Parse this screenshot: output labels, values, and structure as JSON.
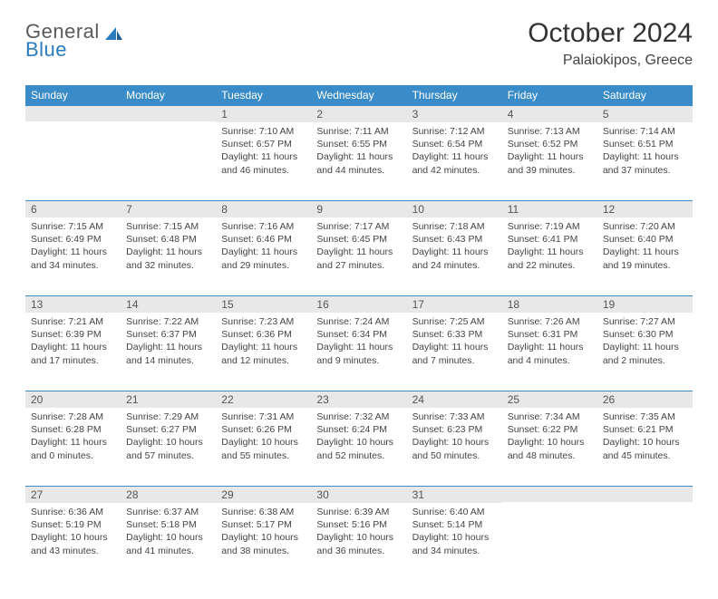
{
  "logo": {
    "top": "General",
    "bottom": "Blue"
  },
  "title": {
    "month": "October 2024",
    "location": "Palaiokipos, Greece"
  },
  "colors": {
    "header_bg": "#3a8cc9",
    "header_text": "#ffffff",
    "daynum_bg": "#e8e8e8",
    "body_text": "#444444",
    "rule": "#3a8cc9",
    "logo_gray": "#5a5a5a",
    "logo_blue": "#2b7bbf"
  },
  "weekdays": [
    "Sunday",
    "Monday",
    "Tuesday",
    "Wednesday",
    "Thursday",
    "Friday",
    "Saturday"
  ],
  "weeks": [
    [
      null,
      null,
      {
        "n": "1",
        "sr": "7:10 AM",
        "ss": "6:57 PM",
        "dl": "11 hours and 46 minutes."
      },
      {
        "n": "2",
        "sr": "7:11 AM",
        "ss": "6:55 PM",
        "dl": "11 hours and 44 minutes."
      },
      {
        "n": "3",
        "sr": "7:12 AM",
        "ss": "6:54 PM",
        "dl": "11 hours and 42 minutes."
      },
      {
        "n": "4",
        "sr": "7:13 AM",
        "ss": "6:52 PM",
        "dl": "11 hours and 39 minutes."
      },
      {
        "n": "5",
        "sr": "7:14 AM",
        "ss": "6:51 PM",
        "dl": "11 hours and 37 minutes."
      }
    ],
    [
      {
        "n": "6",
        "sr": "7:15 AM",
        "ss": "6:49 PM",
        "dl": "11 hours and 34 minutes."
      },
      {
        "n": "7",
        "sr": "7:15 AM",
        "ss": "6:48 PM",
        "dl": "11 hours and 32 minutes."
      },
      {
        "n": "8",
        "sr": "7:16 AM",
        "ss": "6:46 PM",
        "dl": "11 hours and 29 minutes."
      },
      {
        "n": "9",
        "sr": "7:17 AM",
        "ss": "6:45 PM",
        "dl": "11 hours and 27 minutes."
      },
      {
        "n": "10",
        "sr": "7:18 AM",
        "ss": "6:43 PM",
        "dl": "11 hours and 24 minutes."
      },
      {
        "n": "11",
        "sr": "7:19 AM",
        "ss": "6:41 PM",
        "dl": "11 hours and 22 minutes."
      },
      {
        "n": "12",
        "sr": "7:20 AM",
        "ss": "6:40 PM",
        "dl": "11 hours and 19 minutes."
      }
    ],
    [
      {
        "n": "13",
        "sr": "7:21 AM",
        "ss": "6:39 PM",
        "dl": "11 hours and 17 minutes."
      },
      {
        "n": "14",
        "sr": "7:22 AM",
        "ss": "6:37 PM",
        "dl": "11 hours and 14 minutes."
      },
      {
        "n": "15",
        "sr": "7:23 AM",
        "ss": "6:36 PM",
        "dl": "11 hours and 12 minutes."
      },
      {
        "n": "16",
        "sr": "7:24 AM",
        "ss": "6:34 PM",
        "dl": "11 hours and 9 minutes."
      },
      {
        "n": "17",
        "sr": "7:25 AM",
        "ss": "6:33 PM",
        "dl": "11 hours and 7 minutes."
      },
      {
        "n": "18",
        "sr": "7:26 AM",
        "ss": "6:31 PM",
        "dl": "11 hours and 4 minutes."
      },
      {
        "n": "19",
        "sr": "7:27 AM",
        "ss": "6:30 PM",
        "dl": "11 hours and 2 minutes."
      }
    ],
    [
      {
        "n": "20",
        "sr": "7:28 AM",
        "ss": "6:28 PM",
        "dl": "11 hours and 0 minutes."
      },
      {
        "n": "21",
        "sr": "7:29 AM",
        "ss": "6:27 PM",
        "dl": "10 hours and 57 minutes."
      },
      {
        "n": "22",
        "sr": "7:31 AM",
        "ss": "6:26 PM",
        "dl": "10 hours and 55 minutes."
      },
      {
        "n": "23",
        "sr": "7:32 AM",
        "ss": "6:24 PM",
        "dl": "10 hours and 52 minutes."
      },
      {
        "n": "24",
        "sr": "7:33 AM",
        "ss": "6:23 PM",
        "dl": "10 hours and 50 minutes."
      },
      {
        "n": "25",
        "sr": "7:34 AM",
        "ss": "6:22 PM",
        "dl": "10 hours and 48 minutes."
      },
      {
        "n": "26",
        "sr": "7:35 AM",
        "ss": "6:21 PM",
        "dl": "10 hours and 45 minutes."
      }
    ],
    [
      {
        "n": "27",
        "sr": "6:36 AM",
        "ss": "5:19 PM",
        "dl": "10 hours and 43 minutes."
      },
      {
        "n": "28",
        "sr": "6:37 AM",
        "ss": "5:18 PM",
        "dl": "10 hours and 41 minutes."
      },
      {
        "n": "29",
        "sr": "6:38 AM",
        "ss": "5:17 PM",
        "dl": "10 hours and 38 minutes."
      },
      {
        "n": "30",
        "sr": "6:39 AM",
        "ss": "5:16 PM",
        "dl": "10 hours and 36 minutes."
      },
      {
        "n": "31",
        "sr": "6:40 AM",
        "ss": "5:14 PM",
        "dl": "10 hours and 34 minutes."
      },
      null,
      null
    ]
  ]
}
